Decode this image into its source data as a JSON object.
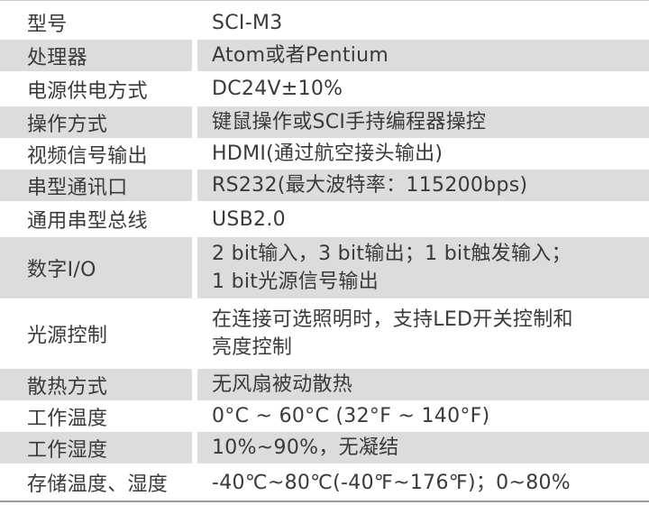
{
  "colors": {
    "stripe": "#dcdcdc",
    "text": "#3a3a3a",
    "background": "#ffffff",
    "bottom_rule": "#9a9a9a"
  },
  "table": {
    "rows": [
      {
        "label": "型号",
        "value": "SCI-M3"
      },
      {
        "label": "处理器",
        "value": "Atom或者Pentium"
      },
      {
        "label": "电源供电方式",
        "value": "DC24V±10%"
      },
      {
        "label": "操作方式",
        "value": "键鼠操作或SCI手持编程器操控"
      },
      {
        "label": "视频信号输出",
        "value": "HDMI(通过航空接头输出)"
      },
      {
        "label": "串型通讯口",
        "value": "RS232(最大波特率：115200bps)"
      },
      {
        "label": "通用串型总线",
        "value": "USB2.0"
      },
      {
        "label": "数字I/O",
        "value": "2 bit输入，3 bit输出；1 bit触发输入；\n1 bit光源信号输出"
      },
      {
        "label": "光源控制",
        "value": "在连接可选照明时，支持LED开关控制和\n亮度控制"
      },
      {
        "label": "散热方式",
        "value": "无风扇被动散热"
      },
      {
        "label": "工作温度",
        "value": "0°C ~ 60°C (32°F ~ 140°F)"
      },
      {
        "label": "工作湿度",
        "value": "10%~90%，无凝结"
      },
      {
        "label": "存储温度、湿度",
        "value": "-40℃~80℃(-40℉~176℉)；0~80%"
      }
    ]
  }
}
